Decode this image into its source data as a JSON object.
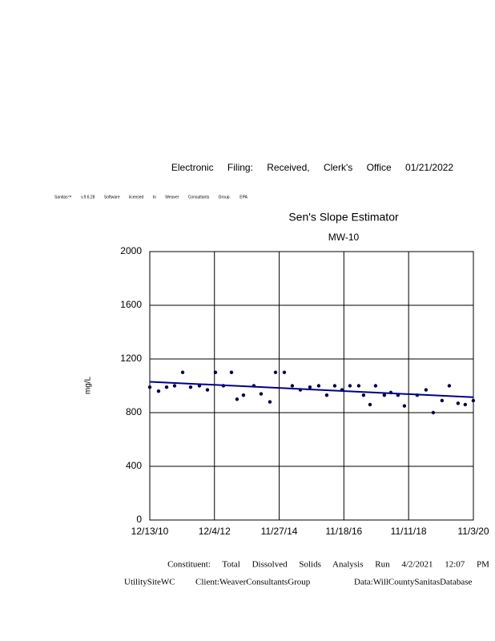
{
  "header": {
    "filing": "Electronic Filing: Received, Clerk's Office 01/21/2022",
    "software": "Sanitas™ v.9.6.28 Software licensed to Weaver Consultants Group. EPA"
  },
  "footer": {
    "run": "Constituent: Total Dissolved Solids Analysis Run 4/2/2021 12:07 PM",
    "site": "UtilitySiteWC",
    "client": "Client:WeaverConsultantsGroup",
    "database": "Data:WillCountySanitasDatabase"
  },
  "chart_data": {
    "type": "scatter",
    "title": "Sen's Slope Estimator",
    "subtitle": "MW-10",
    "y_label": "mg/L",
    "grid": true,
    "color": "#000040",
    "x": [
      "2010-12-13",
      "2011-03-21",
      "2011-06-19",
      "2011-09-16",
      "2011-12-15",
      "2012-03-13",
      "2012-06-19",
      "2012-09-17",
      "2012-12-15",
      "2013-03-14",
      "2013-06-12",
      "2013-08-13",
      "2013-10-24",
      "2014-02-17",
      "2014-05-09",
      "2014-08-15",
      "2014-10-17",
      "2015-01-23",
      "2015-04-22",
      "2015-07-21",
      "2015-11-05",
      "2016-02-11",
      "2016-05-11",
      "2016-08-08",
      "2016-10-28",
      "2017-01-25",
      "2017-05-03",
      "2017-06-26",
      "2017-09-06",
      "2017-11-07",
      "2018-02-13",
      "2018-04-26",
      "2018-07-15",
      "2018-09-25",
      "2019-02-15",
      "2019-05-24",
      "2019-08-13",
      "2019-11-19",
      "2020-02-08",
      "2020-05-16",
      "2020-08-04",
      "2020-11-02"
    ],
    "values": [
      990,
      960,
      990,
      1000,
      1100,
      990,
      1000,
      970,
      1100,
      1000,
      1100,
      900,
      930,
      1000,
      940,
      880,
      1100,
      1100,
      1000,
      970,
      990,
      1000,
      930,
      1000,
      970,
      1000,
      1000,
      930,
      860,
      1000,
      930,
      950,
      930,
      850,
      930,
      970,
      800,
      890,
      1000,
      870,
      860,
      890
    ],
    "trend": {
      "x": [
        "2010-12-13",
        "2020-11-03"
      ],
      "values": [
        1030,
        915
      ],
      "color": "#00008b"
    },
    "xlim": [
      "2010-12-13",
      "2020-11-03"
    ],
    "xticks": [
      {
        "value": "2010-12-13",
        "label": "12/13/10"
      },
      {
        "value": "2012-12-04",
        "label": "12/4/12"
      },
      {
        "value": "2014-11-27",
        "label": "11/27/14"
      },
      {
        "value": "2016-11-18",
        "label": "11/18/16"
      },
      {
        "value": "2018-11-11",
        "label": "11/11/18"
      },
      {
        "value": "2020-11-03",
        "label": "11/3/20"
      }
    ],
    "ylim": [
      0,
      2000
    ],
    "yticks": [
      0,
      400,
      800,
      1200,
      1600,
      2000
    ]
  }
}
